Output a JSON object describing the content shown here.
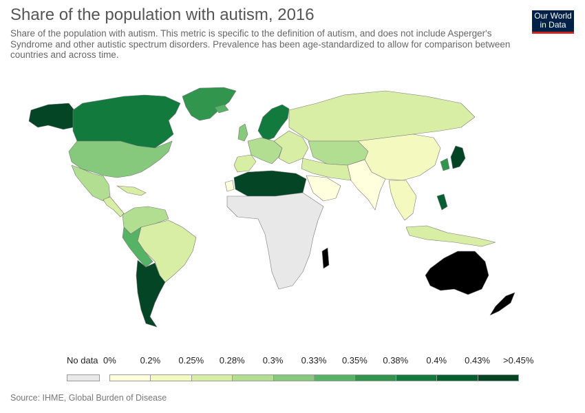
{
  "header": {
    "title": "Share of the population with autism, 2016",
    "subtitle": "Share of the population with autism. This metric is specific to the definition of autism, and does not include Asperger's Syndrome and other autistic spectrum disorders. Prevalence has been age-standardized to allow for comparison between countries and across time."
  },
  "logo": {
    "line1": "Our World",
    "line2": "in Data"
  },
  "legend": {
    "no_data_label": "No data",
    "no_data_color": "#e8e8e8",
    "labels": [
      "0%",
      "0.2%",
      "0.25%",
      "0.28%",
      "0.3%",
      "0.33%",
      "0.35%",
      "0.38%",
      "0.4%",
      "0.43%",
      ">0.45%"
    ],
    "colors": [
      "#ffffdd",
      "#f4f9c0",
      "#d8eea4",
      "#b2de92",
      "#86c97c",
      "#56b264",
      "#31954e",
      "#137a3e",
      "#065f31",
      "#034524"
    ]
  },
  "map_regions": [
    {
      "name": "Canada",
      "color": "#034524"
    },
    {
      "name": "Alaska",
      "color": "#137a3e"
    },
    {
      "name": "United States",
      "color": "#31954e"
    },
    {
      "name": "Greenland",
      "color": "#86c97c"
    },
    {
      "name": "Mexico",
      "color": "#b2de92"
    },
    {
      "name": "Central America",
      "color": "#d8eea4"
    },
    {
      "name": "Colombia / Venezuela",
      "color": "#d8eea4"
    },
    {
      "name": "Brazil",
      "color": "#b2de92"
    },
    {
      "name": "Peru / Bolivia",
      "color": "#d8eea4"
    },
    {
      "name": "Argentina / Chile",
      "color": "#56b264"
    },
    {
      "name": "United Kingdom",
      "color": "#034524"
    },
    {
      "name": "Scandinavia",
      "color": "#137a3e"
    },
    {
      "name": "Western Europe",
      "color": "#86c97c"
    },
    {
      "name": "Iberia",
      "color": "#56b264"
    },
    {
      "name": "Eastern Europe",
      "color": "#b2de92"
    },
    {
      "name": "Russia",
      "color": "#d8eea4"
    },
    {
      "name": "Central Asia",
      "color": "#d8eea4"
    },
    {
      "name": "Middle East",
      "color": "#d8eea4"
    },
    {
      "name": "Arabian Peninsula",
      "color": "#b2de92"
    },
    {
      "name": "North Africa",
      "color": "#d8eea4"
    },
    {
      "name": "Sub-Saharan Africa",
      "color": "#ffffdd"
    },
    {
      "name": "South Asia",
      "color": "#f4f9c0"
    },
    {
      "name": "China",
      "color": "#ffffdd"
    },
    {
      "name": "Southeast Asia",
      "color": "#f4f9c0"
    },
    {
      "name": "Indonesia",
      "color": "#d8eea4"
    },
    {
      "name": "Japan",
      "color": "#065f31"
    },
    {
      "name": "South Korea",
      "color": "#31954e"
    },
    {
      "name": "Australia",
      "color": "#034524"
    },
    {
      "name": "New Zealand",
      "color": "#034524"
    },
    {
      "name": "Madagascar",
      "color": "#ffffdd"
    },
    {
      "name": "Western Sahara",
      "color": "#e8e8e8"
    }
  ],
  "footer": {
    "source": "Source: IHME, Global Burden of Disease"
  }
}
